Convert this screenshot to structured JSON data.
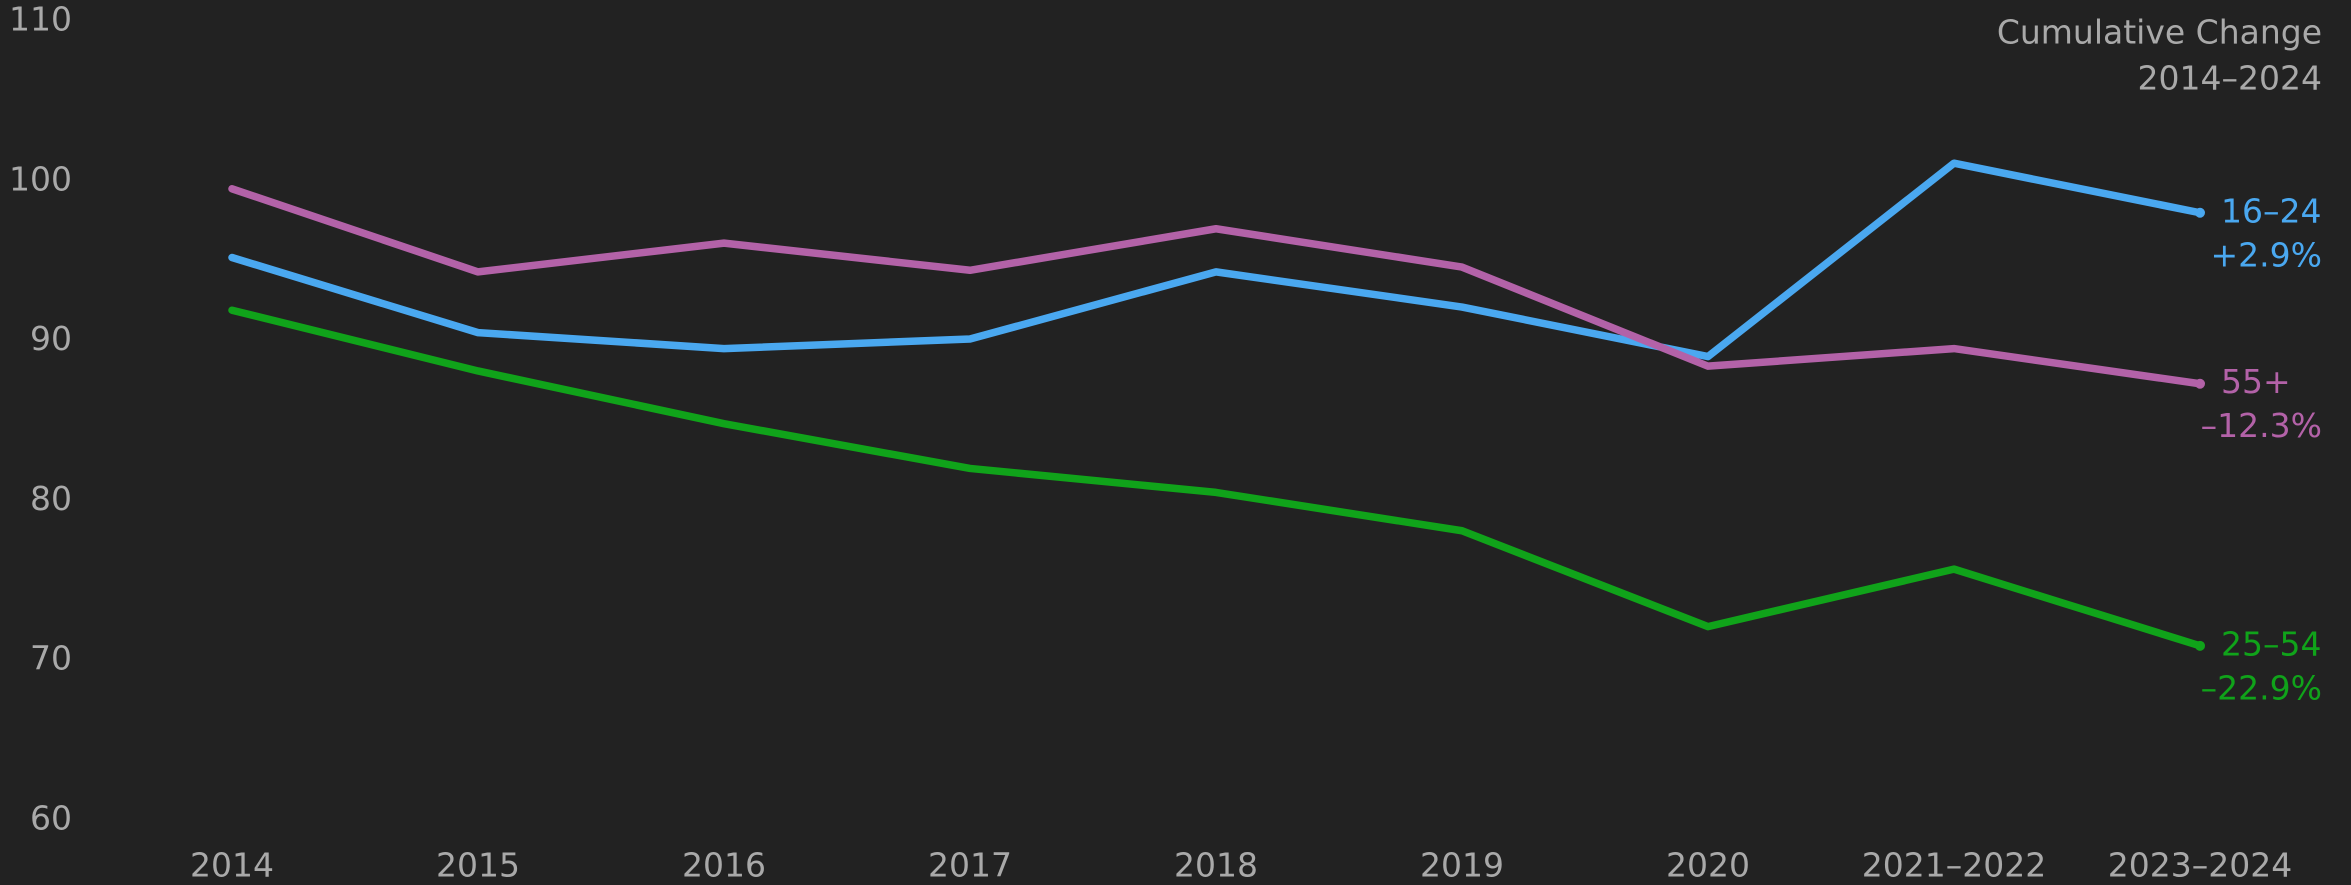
{
  "chart_data": {
    "type": "line",
    "title": [
      "Cumulative Change",
      "2014–2024"
    ],
    "categories": [
      "2014",
      "2015",
      "2016",
      "2017",
      "2018",
      "2019",
      "2020",
      "2021–2022",
      "2023–2024"
    ],
    "series": [
      {
        "name": "16–24",
        "color": "#4aa8f0",
        "change": "+2.9%",
        "values": [
          95.2,
          90.5,
          89.5,
          90.1,
          94.3,
          92.1,
          89.0,
          101.1,
          98.0
        ]
      },
      {
        "name": "55+",
        "color": "#b362a8",
        "change": "–12.3%",
        "values": [
          99.5,
          94.3,
          96.1,
          94.4,
          97.0,
          94.6,
          88.4,
          89.5,
          87.3
        ]
      },
      {
        "name": "25–54",
        "color": "#10a31a",
        "change": "–22.9%",
        "values": [
          91.9,
          88.1,
          84.8,
          82.0,
          80.5,
          78.1,
          72.1,
          75.7,
          70.9
        ]
      }
    ],
    "ylim": [
      60,
      110
    ],
    "yticks": [
      60,
      70,
      80,
      90,
      100,
      110
    ],
    "grid": false
  }
}
